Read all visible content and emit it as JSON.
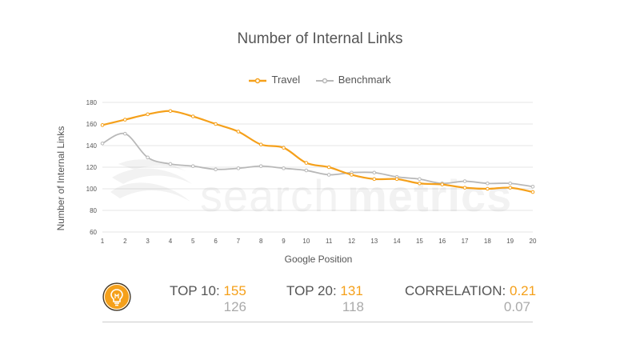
{
  "colors": {
    "travel": "#f5a01a",
    "benchmark": "#b8b8b8",
    "grid": "#e6e6e6",
    "text": "#555555"
  },
  "chart_data": {
    "type": "line",
    "title": "Number of Internal Links",
    "xlabel": "Google Position",
    "ylabel": "Number of Internal Links",
    "x": [
      1,
      2,
      3,
      4,
      5,
      6,
      7,
      8,
      9,
      10,
      11,
      12,
      13,
      14,
      15,
      16,
      17,
      18,
      19,
      20
    ],
    "ylim": [
      60,
      180
    ],
    "yticks": [
      60,
      80,
      100,
      120,
      140,
      160,
      180
    ],
    "grid": true,
    "legend_position": "top-center",
    "series": [
      {
        "name": "Travel",
        "color": "#f5a01a",
        "values": [
          159,
          164,
          169,
          172,
          167,
          160,
          153,
          141,
          138,
          124,
          120,
          113,
          109,
          109,
          105,
          104,
          101,
          100,
          101,
          97
        ]
      },
      {
        "name": "Benchmark",
        "color": "#b8b8b8",
        "values": [
          142,
          151,
          129,
          123,
          121,
          118,
          119,
          121,
          119,
          117,
          113,
          115,
          115,
          111,
          109,
          105,
          107,
          105,
          105,
          102
        ]
      }
    ]
  },
  "stats": {
    "icon": "lightbulb-icon",
    "top10": {
      "label": "TOP 10:",
      "value": "155",
      "bench": "126"
    },
    "top20": {
      "label": "TOP 20:",
      "value": "131",
      "bench": "118"
    },
    "correlation": {
      "label": "CORRELATION:",
      "value": "0.21",
      "bench": "0.07"
    }
  }
}
